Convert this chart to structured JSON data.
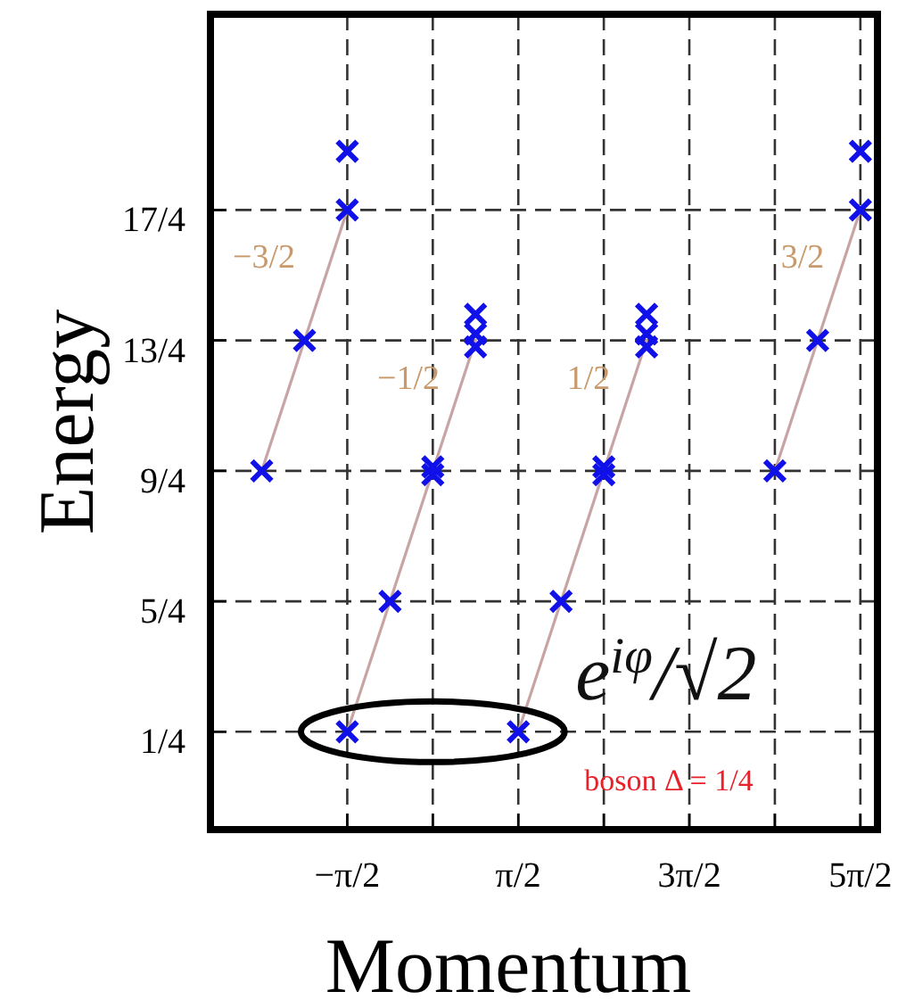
{
  "chart_data": {
    "type": "scatter",
    "xlabel": "Momentum",
    "ylabel": "Energy",
    "xlim": [
      -4.084,
      8.168
    ],
    "ylim": [
      -0.5,
      5.75
    ],
    "xticks": [
      {
        "value": -1.5708,
        "label": "−π/2"
      },
      {
        "value": 0,
        "label": null
      },
      {
        "value": 1.5708,
        "label": "π/2"
      },
      {
        "value": 3.1416,
        "label": null
      },
      {
        "value": 4.7124,
        "label": "3π/2"
      },
      {
        "value": 6.2832,
        "label": null
      },
      {
        "value": 7.854,
        "label": "5π/2"
      }
    ],
    "yticks": [
      {
        "value": 0.25,
        "label": "1/4"
      },
      {
        "value": 1.25,
        "label": "5/4"
      },
      {
        "value": 2.25,
        "label": "9/4"
      },
      {
        "value": 3.25,
        "label": "13/4"
      },
      {
        "value": 4.25,
        "label": "17/4"
      }
    ],
    "grid": true,
    "series": [
      {
        "type": "line",
        "marker": "none",
        "color": "#c8a4a4",
        "x": [
          -3.1416,
          -1.5708
        ],
        "values": [
          2.25,
          4.25
        ]
      },
      {
        "type": "line",
        "marker": "none",
        "color": "#c8a4a4",
        "x": [
          -1.5708,
          0.7854
        ],
        "values": [
          0.25,
          3.25
        ]
      },
      {
        "type": "line",
        "marker": "none",
        "color": "#c8a4a4",
        "x": [
          1.5708,
          3.927
        ],
        "values": [
          0.25,
          3.25
        ]
      },
      {
        "type": "line",
        "marker": "none",
        "color": "#c8a4a4",
        "x": [
          6.2832,
          7.854
        ],
        "values": [
          2.25,
          4.25
        ]
      },
      {
        "marker": "cross",
        "color": "#1010e8",
        "x": [
          -3.1416,
          -2.3562,
          -1.5708,
          -1.5708,
          -1.5708,
          -0.7854,
          0,
          0,
          0.7854,
          0.7854,
          0.7854,
          1.5708,
          2.3562,
          3.1416,
          3.1416,
          3.927,
          3.927,
          3.927,
          6.2832,
          7.0686,
          7.854,
          7.854
        ],
        "values": [
          2.25,
          3.25,
          4.25,
          4.7,
          0.25,
          1.25,
          2.22,
          2.28,
          3.2,
          3.3,
          3.45,
          0.25,
          1.25,
          2.22,
          2.28,
          3.2,
          3.3,
          3.45,
          2.25,
          3.25,
          4.25,
          4.7
        ]
      }
    ],
    "annotations": [
      "−3/2",
      "−1/2",
      "1/2",
      "3/2",
      {
        "text": "e$^{iφ}$/√2",
        "x": 1.5708,
        "y": 0.25
      },
      "boson  Δ = 1/4"
    ]
  }
}
